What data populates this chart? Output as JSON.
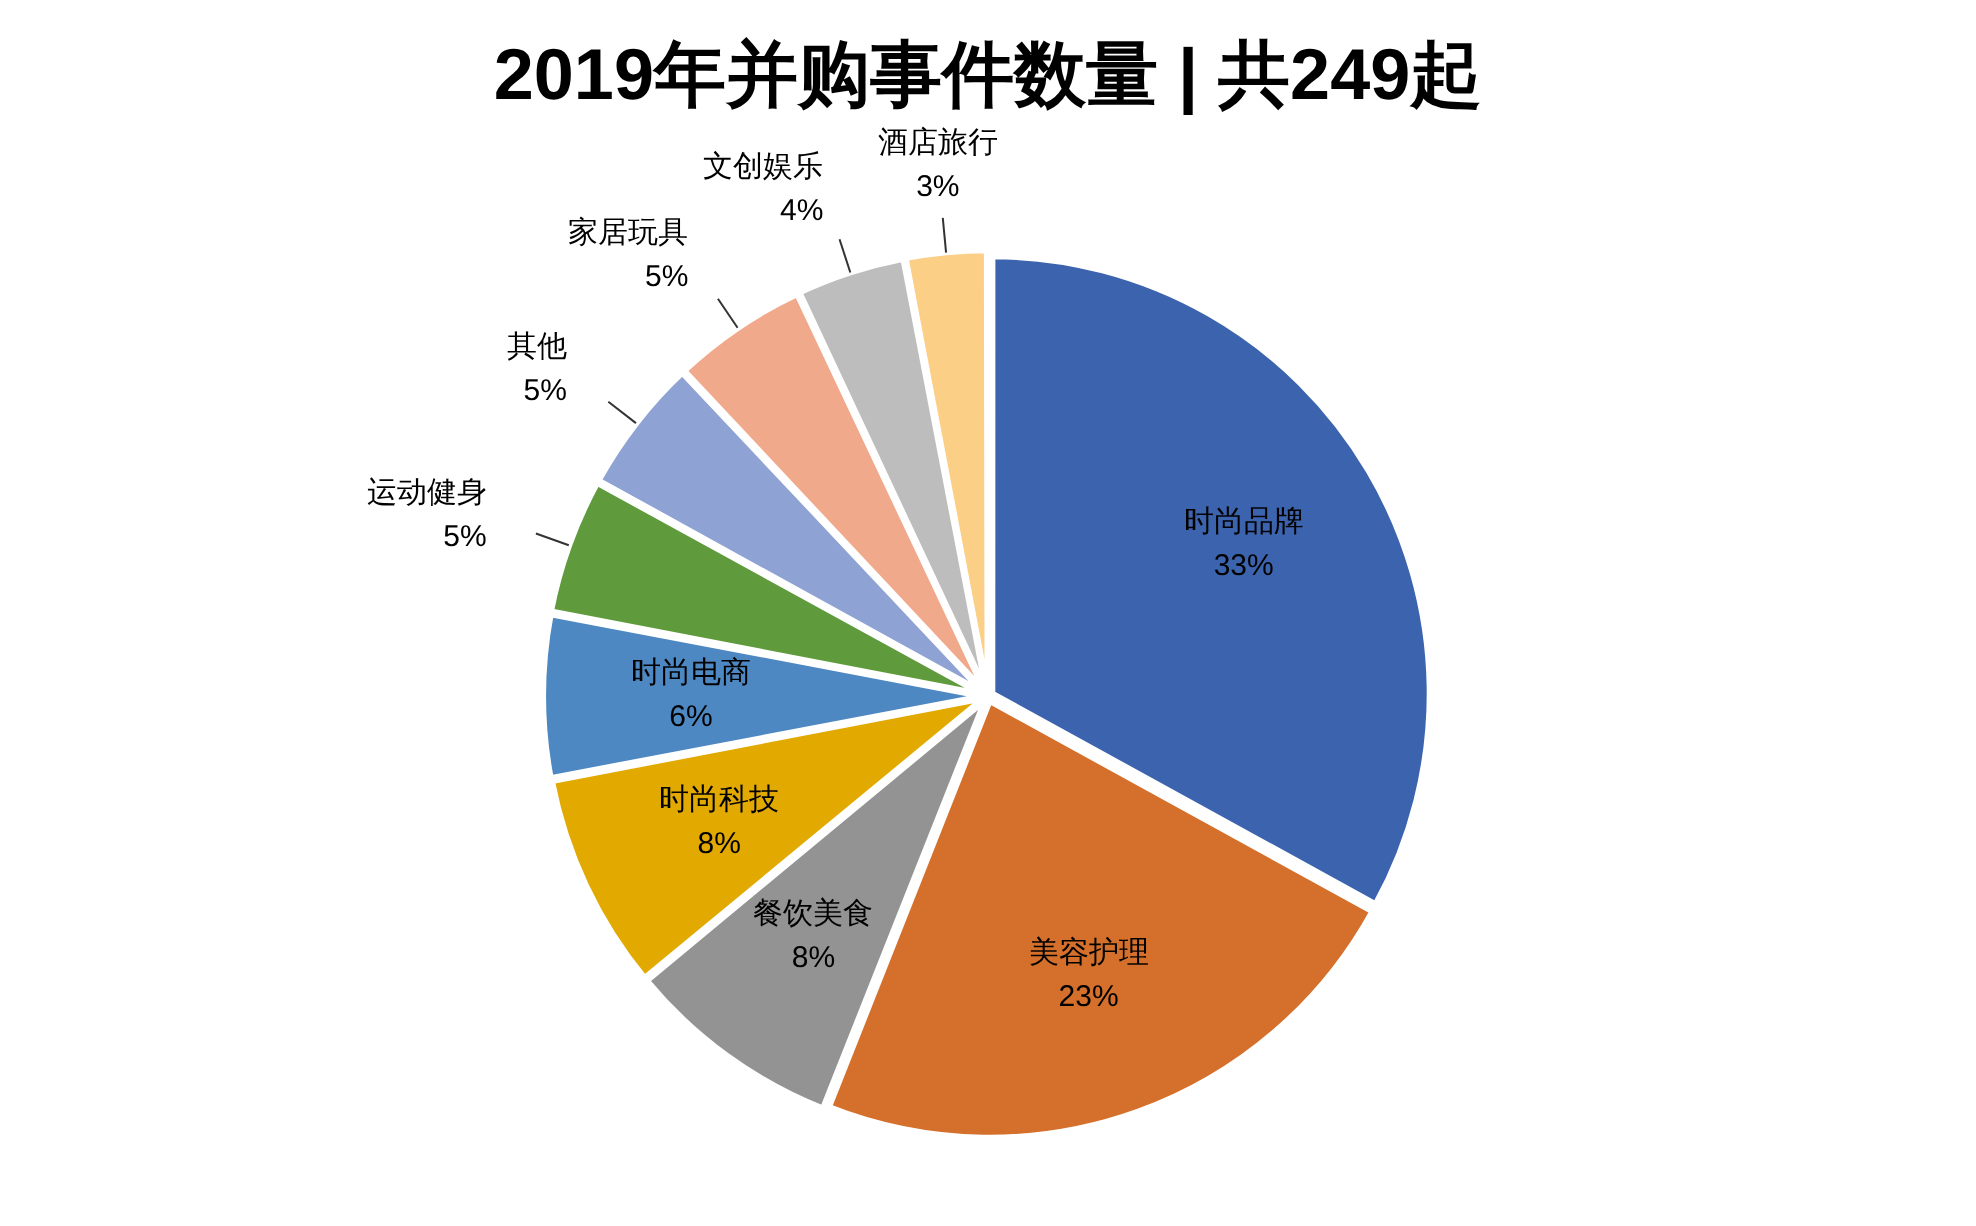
{
  "chart_data": {
    "type": "pie",
    "title": "2019年并购事件数量 | 共249起",
    "categories": [
      "时尚品牌",
      "美容护理",
      "餐饮美食",
      "时尚科技",
      "时尚电商",
      "运动健身",
      "其他",
      "家居玩具",
      "文创娱乐",
      "酒店旅行"
    ],
    "values": [
      33,
      23,
      8,
      8,
      6,
      5,
      5,
      5,
      4,
      3
    ],
    "value_labels": [
      "33%",
      "23%",
      "8%",
      "8%",
      "6%",
      "5%",
      "5%",
      "5%",
      "4%",
      "3%"
    ],
    "colors": [
      "#3c64ae",
      "#d4702b",
      "#939393",
      "#e2a900",
      "#4e88c2",
      "#5f9a3c",
      "#8fa2d4",
      "#f0a98a",
      "#bdbdbd",
      "#fccf86"
    ],
    "legend": false
  }
}
